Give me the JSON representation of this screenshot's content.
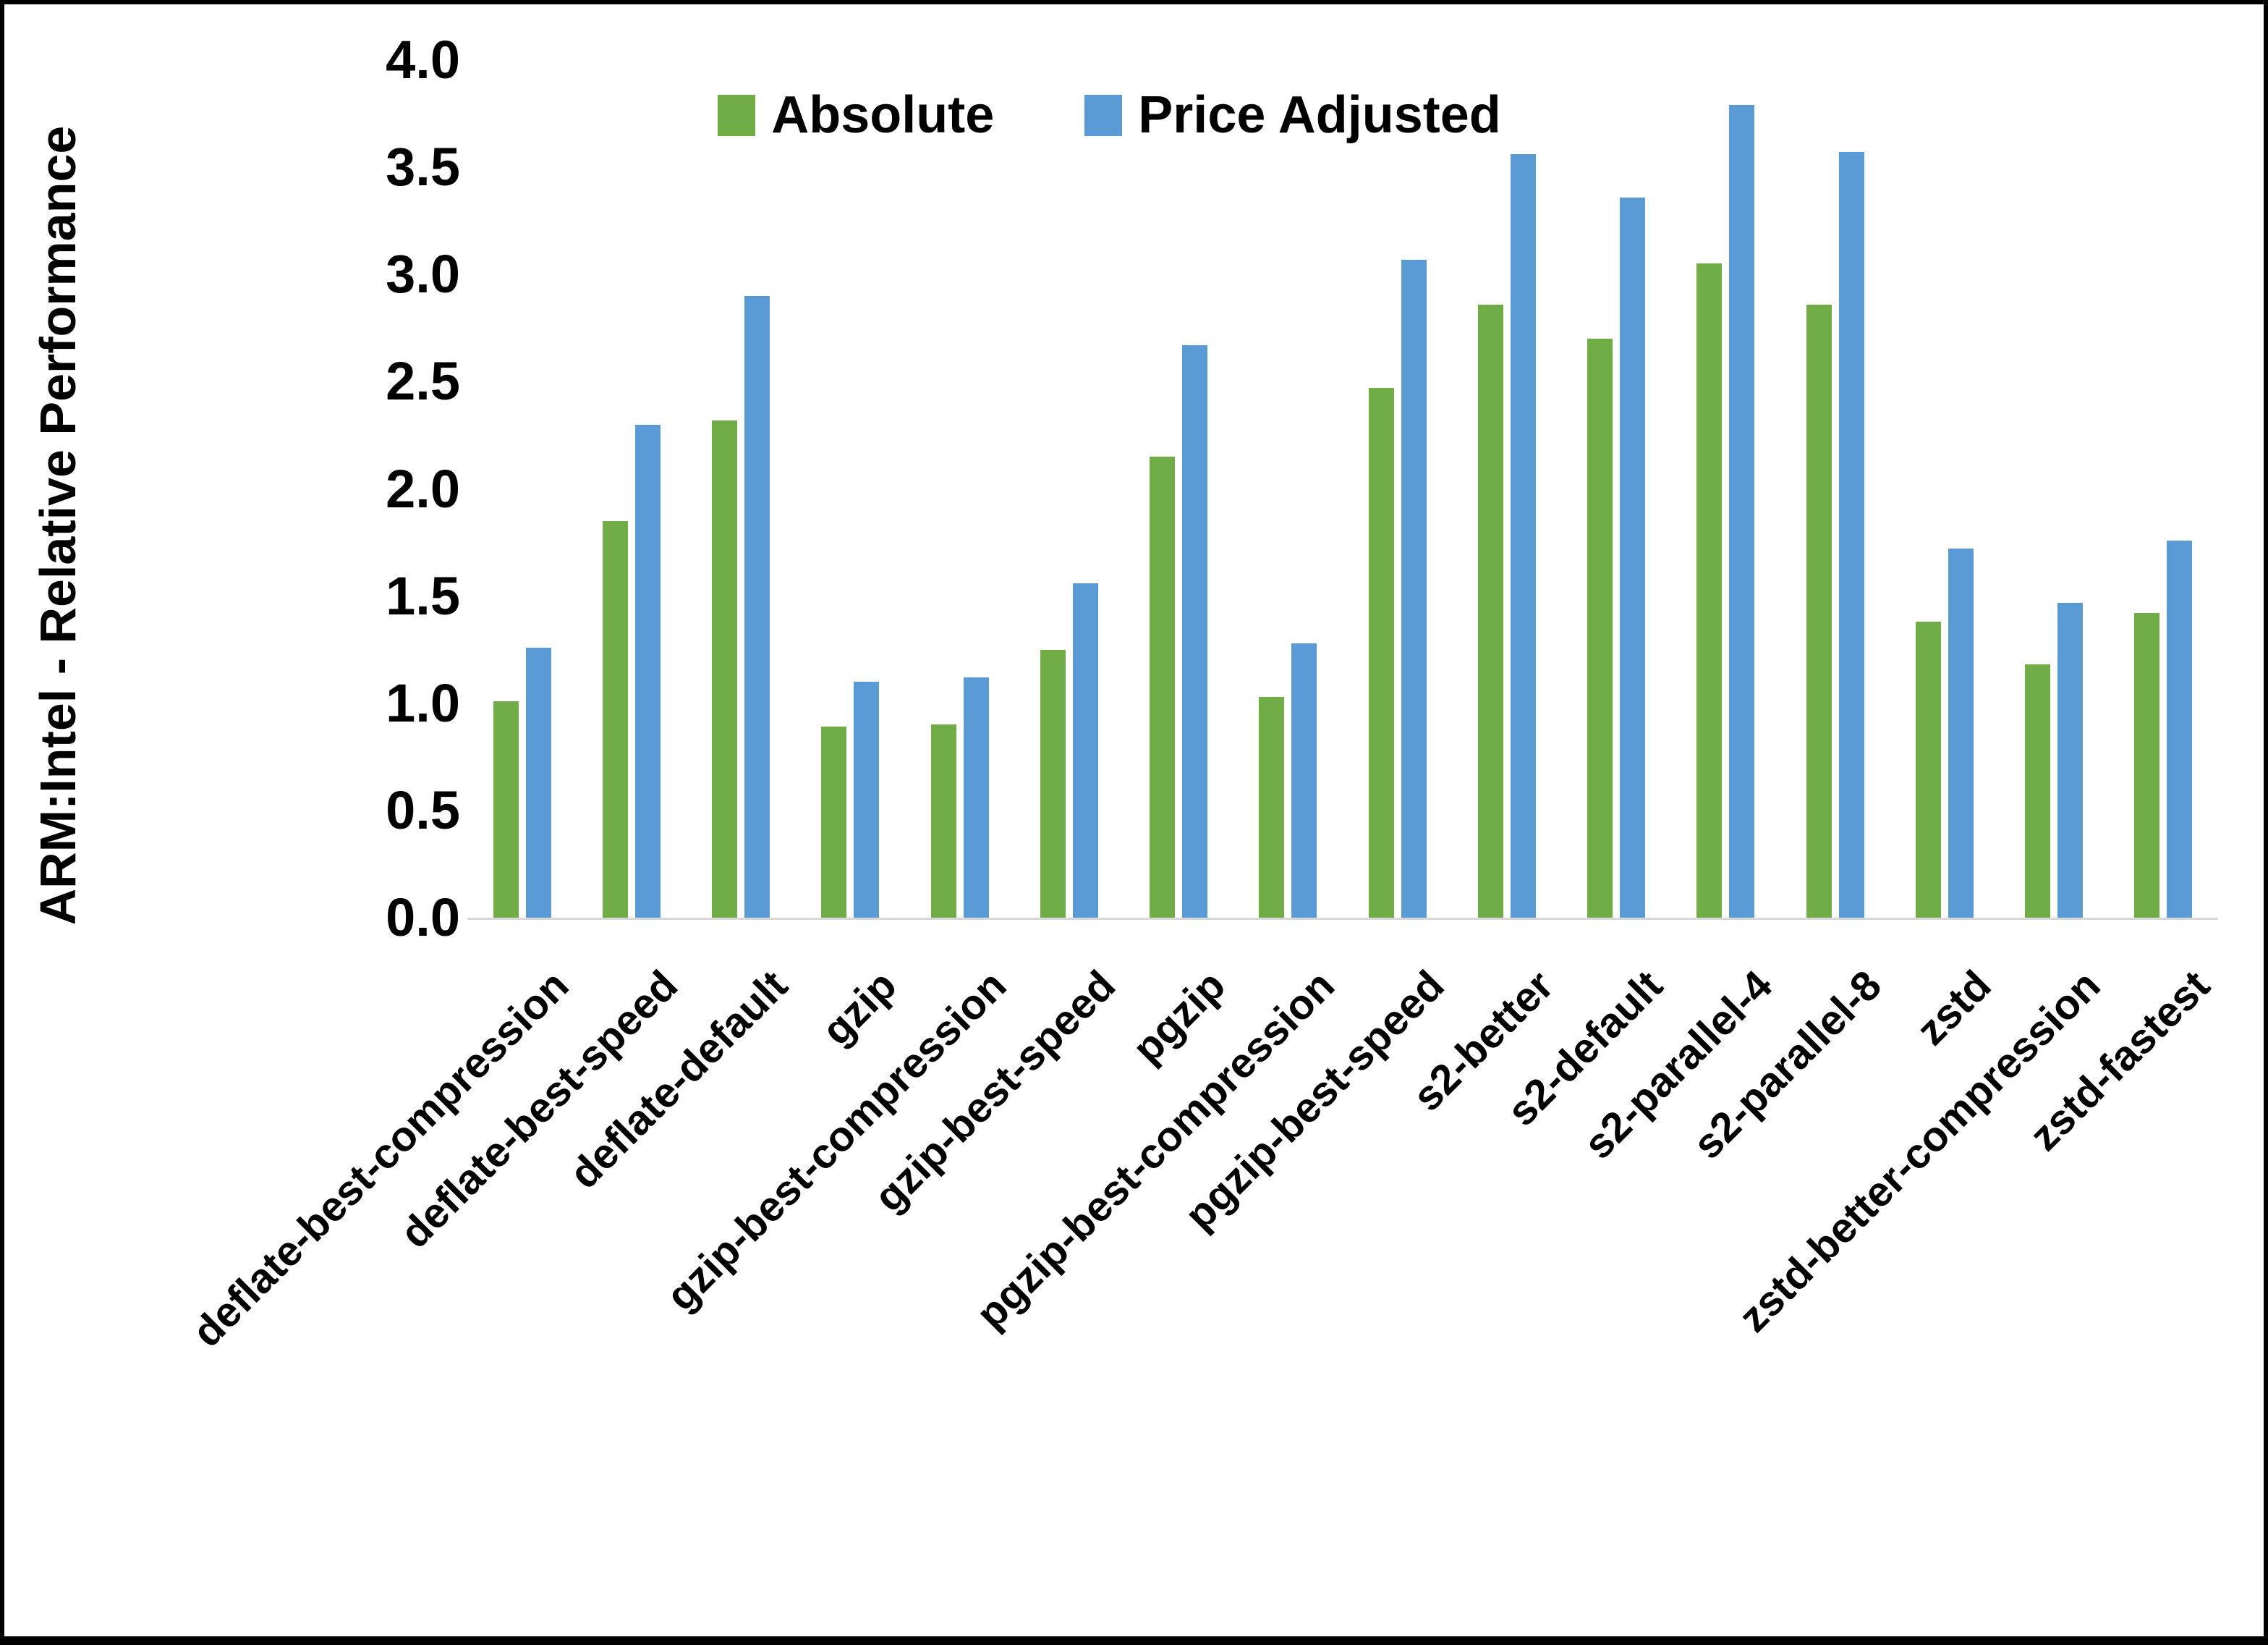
{
  "chart_data": {
    "type": "bar",
    "title": "",
    "ylabel": "ARM:Intel - Relative Performance",
    "xlabel": "",
    "ylim": [
      0.0,
      4.0
    ],
    "y_tick_labels": [
      "4.0",
      "3.5",
      "3.0",
      "2.5",
      "2.0",
      "1.5",
      "1.0",
      "0.5",
      "0.0"
    ],
    "grid": "off",
    "legend_position": "top-center",
    "categories": [
      "deflate-best-compression",
      "deflate-best-speed",
      "deflate-default",
      "gzip",
      "gzip-best-compression",
      "gzip-best-speed",
      "pgzip",
      "pgzip-best-compression",
      "pgzip-best-speed",
      "s2-better",
      "s2-default",
      "s2-parallel-4",
      "s2-parallel-8",
      "zstd",
      "zstd-better-compression",
      "zstd-fastest"
    ],
    "series": [
      {
        "name": "Absolute",
        "color": "#70AD47",
        "values": [
          1.01,
          1.85,
          2.32,
          0.89,
          0.9,
          1.25,
          2.15,
          1.03,
          2.47,
          2.86,
          2.7,
          3.05,
          2.86,
          1.38,
          1.18,
          1.42
        ]
      },
      {
        "name": "Price Adjusted",
        "color": "#5B9BD5",
        "values": [
          1.26,
          2.3,
          2.9,
          1.1,
          1.12,
          1.56,
          2.67,
          1.28,
          3.07,
          3.56,
          3.36,
          3.79,
          3.57,
          1.72,
          1.47,
          1.76
        ]
      }
    ],
    "axis_line_color": "#D9D9D9"
  }
}
